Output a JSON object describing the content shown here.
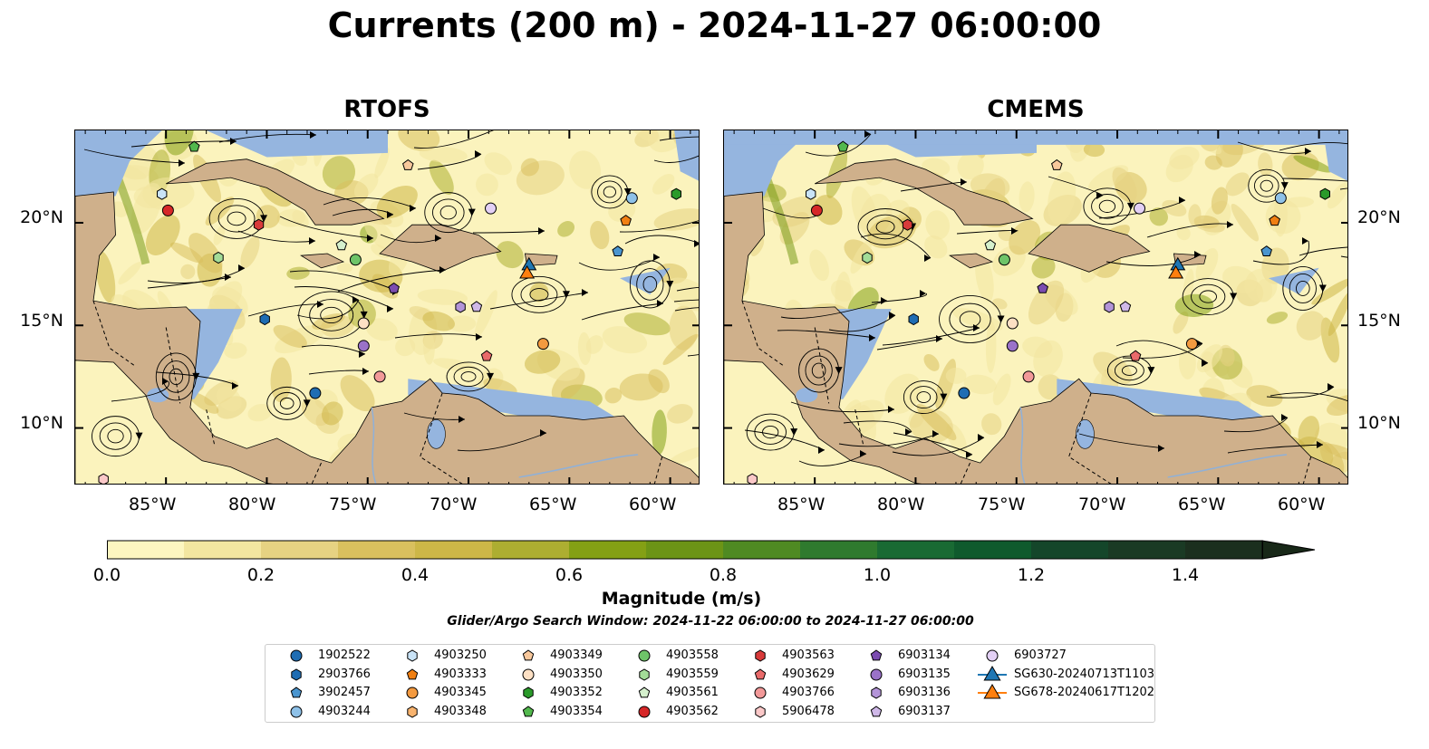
{
  "title": "Currents (200 m) - 2024-11-27 06:00:00",
  "panels": [
    {
      "title": "RTOFS"
    },
    {
      "title": "CMEMS"
    }
  ],
  "axes": {
    "lon_ticks": [
      "85°W",
      "80°W",
      "75°W",
      "70°W",
      "65°W",
      "60°W"
    ],
    "lat_ticks": [
      "20°N",
      "15°N",
      "10°N"
    ],
    "lon_range": [
      -89.5,
      -58.5
    ],
    "lat_range": [
      7.2,
      24.5
    ]
  },
  "colorbar": {
    "label": "Magnitude (m/s)",
    "ticks": [
      "0.0",
      "0.2",
      "0.4",
      "0.6",
      "0.8",
      "1.0",
      "1.2",
      "1.4"
    ],
    "range": [
      0.0,
      1.5
    ],
    "extend": "max",
    "colors": [
      "#fdf6c0",
      "#f3e6a0",
      "#e6d282",
      "#d9c05e",
      "#cdb747",
      "#adae31",
      "#84a014",
      "#6c9416",
      "#4f8a22",
      "#2f7a2e",
      "#196a33",
      "#0f5a2d",
      "#14462a",
      "#1a3a24",
      "#1b2f1e",
      "#182818"
    ]
  },
  "search_window": "Glider/Argo Search Window: 2024-11-22 06:00:00 to 2024-11-27 06:00:00",
  "legend": [
    {
      "label": "1902522",
      "marker": "circle",
      "color": "#1f6db3"
    },
    {
      "label": "2903766",
      "marker": "hexagon",
      "color": "#1f6db3"
    },
    {
      "label": "3902457",
      "marker": "pentagon",
      "color": "#4a95cf"
    },
    {
      "label": "4903244",
      "marker": "circle",
      "color": "#8ec1e8"
    },
    {
      "label": "4903250",
      "marker": "hexagon",
      "color": "#c9e3f7"
    },
    {
      "label": "4903333",
      "marker": "pentagon",
      "color": "#f07f12"
    },
    {
      "label": "4903345",
      "marker": "circle",
      "color": "#f39a40"
    },
    {
      "label": "4903348",
      "marker": "hexagon",
      "color": "#f8b36e"
    },
    {
      "label": "4903349",
      "marker": "pentagon",
      "color": "#f8c89c"
    },
    {
      "label": "4903350",
      "marker": "circle",
      "color": "#fde0c4"
    },
    {
      "label": "4903352",
      "marker": "hexagon",
      "color": "#2a9a2a"
    },
    {
      "label": "4903354",
      "marker": "pentagon",
      "color": "#52b84d"
    },
    {
      "label": "4903558",
      "marker": "circle",
      "color": "#6ec469"
    },
    {
      "label": "4903559",
      "marker": "hexagon",
      "color": "#a3dc98"
    },
    {
      "label": "4903561",
      "marker": "pentagon",
      "color": "#d5f0cd"
    },
    {
      "label": "4903562",
      "marker": "circle",
      "color": "#d62728"
    },
    {
      "label": "4903563",
      "marker": "hexagon",
      "color": "#d83a3a"
    },
    {
      "label": "4903629",
      "marker": "pentagon",
      "color": "#e96a6a"
    },
    {
      "label": "4903766",
      "marker": "circle",
      "color": "#f29999"
    },
    {
      "label": "5906478",
      "marker": "hexagon",
      "color": "#fbc8c8"
    },
    {
      "label": "6903134",
      "marker": "pentagon",
      "color": "#7b4cb0"
    },
    {
      "label": "6903135",
      "marker": "circle",
      "color": "#9a72c8"
    },
    {
      "label": "6903136",
      "marker": "hexagon",
      "color": "#b394d8"
    },
    {
      "label": "6903137",
      "marker": "pentagon",
      "color": "#cfb8e8"
    },
    {
      "label": "6903727",
      "marker": "circle",
      "color": "#e3d0f5"
    },
    {
      "label": "SG630-20240713T1103",
      "marker": "triangle",
      "color": "#1f77b4"
    },
    {
      "label": "SG678-20240617T1202",
      "marker": "triangle",
      "color": "#ff7f0e"
    }
  ],
  "markers": [
    {
      "label": "1902522",
      "lon": -77.6,
      "lat": 11.7,
      "rtofs": true,
      "cmems": true
    },
    {
      "label": "2903766",
      "lon": -80.1,
      "lat": 15.3
    },
    {
      "label": "3902457",
      "lon": -62.6,
      "lat": 18.6
    },
    {
      "label": "4903244",
      "lon": -61.9,
      "lat": 21.2
    },
    {
      "label": "4903250",
      "lon": -85.2,
      "lat": 21.4
    },
    {
      "label": "4903333",
      "lon": -62.2,
      "lat": 20.1
    },
    {
      "label": "4903349",
      "lon": -73.0,
      "lat": 22.8
    },
    {
      "label": "4903350",
      "lon": -75.2,
      "lat": 15.1
    },
    {
      "label": "4903352",
      "lon": -59.7,
      "lat": 21.4
    },
    {
      "label": "4903354",
      "lon": -83.6,
      "lat": 23.7
    },
    {
      "label": "4903558",
      "lon": -75.6,
      "lat": 18.2
    },
    {
      "label": "4903559",
      "lon": -82.4,
      "lat": 18.3
    },
    {
      "label": "4903561",
      "lon": -76.3,
      "lat": 18.9
    },
    {
      "label": "4903562",
      "lon": -84.9,
      "lat": 20.6
    },
    {
      "label": "4903563",
      "lon": -80.4,
      "lat": 19.9
    },
    {
      "label": "4903629",
      "lon": -69.1,
      "lat": 13.5
    },
    {
      "label": "4903766",
      "lon": -74.4,
      "lat": 12.5
    },
    {
      "label": "5906478",
      "lon": -88.1,
      "lat": 7.5
    },
    {
      "label": "6903134",
      "lon": -73.7,
      "lat": 16.8
    },
    {
      "label": "6903135",
      "lon": -75.2,
      "lat": 14.0
    },
    {
      "label": "6903136",
      "lon": -70.4,
      "lat": 15.9
    },
    {
      "label": "6903137",
      "lon": -69.6,
      "lat": 15.9
    },
    {
      "label": "6903727",
      "lon": -68.9,
      "lat": 20.7
    },
    {
      "label": "SG630-20240713T1103",
      "lon": -67.0,
      "lat": 17.9
    },
    {
      "label": "SG678-20240617T1202",
      "lon": -67.1,
      "lat": 17.5
    },
    {
      "label": "4903345",
      "lon": -66.3,
      "lat": 14.1
    }
  ]
}
